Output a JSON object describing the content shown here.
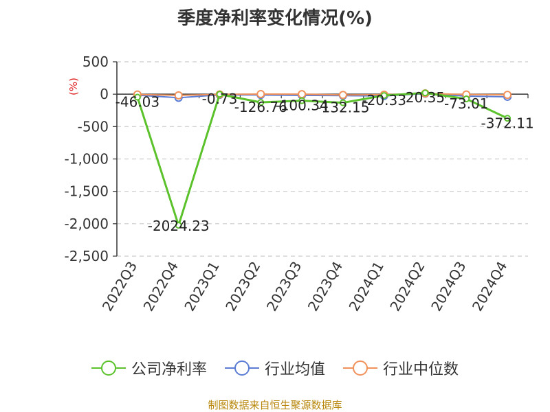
{
  "chart_data": {
    "type": "line",
    "title": "季度净利率变化情况(%)",
    "ylabel": "(%)",
    "categories": [
      "2022Q3",
      "2022Q4",
      "2023Q1",
      "2023Q2",
      "2023Q3",
      "2023Q4",
      "2024Q1",
      "2024Q2",
      "2024Q3",
      "2024Q4"
    ],
    "ylim": [
      -2500,
      500
    ],
    "yticks": [
      500,
      0,
      -500,
      -1000,
      -1500,
      -2000,
      -2500
    ],
    "ytick_labels": [
      "500",
      "0",
      "-500",
      "-1,000",
      "-1,500",
      "-2,000",
      "-2,500"
    ],
    "grid": true,
    "legend_position": "bottom",
    "series": [
      {
        "name": "公司净利率",
        "color": "#5bc22c",
        "values": [
          -46.03,
          -2024.23,
          -0.73,
          -126.76,
          -100.34,
          -132.15,
          -20.33,
          20.35,
          -73.01,
          -372.11
        ],
        "labels": [
          "-46.03",
          "-2024.23",
          "-0.73",
          "-126.76",
          "-100.34",
          "-132.15",
          "-20.33",
          "20.35",
          "-73.01",
          "-372.11"
        ]
      },
      {
        "name": "行业均值",
        "color": "#5b7bd5",
        "values": [
          -15,
          -55,
          -10,
          -12,
          -18,
          -22,
          -28,
          8,
          -30,
          -40
        ]
      },
      {
        "name": "行业中位数",
        "color": "#f0915a",
        "values": [
          -5,
          -18,
          -3,
          2,
          0,
          -12,
          -8,
          12,
          -5,
          -10
        ]
      }
    ]
  },
  "source_text": "制图数据来自恒生聚源数据库"
}
